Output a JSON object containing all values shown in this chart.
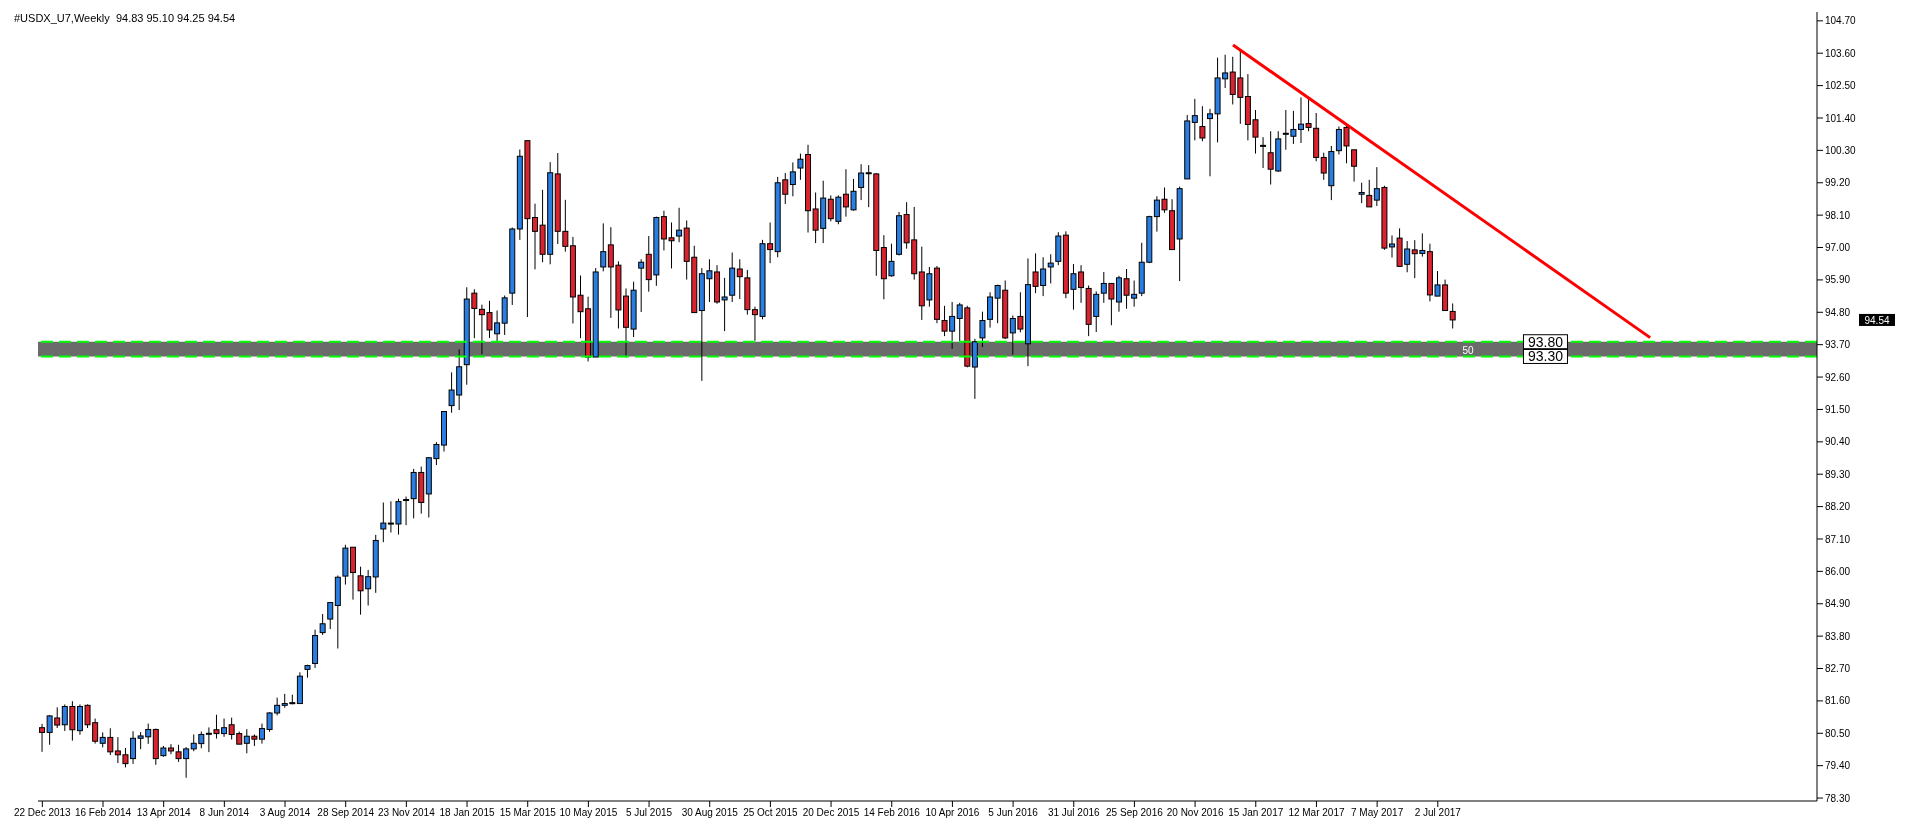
{
  "chart_data": {
    "type": "candlestick",
    "title": "#USDX_U7,Weekly  94.83 95.10 94.25 94.54",
    "xlim": [
      "2013-12-18",
      "2018-06-17"
    ],
    "ylim": [
      78.2,
      105.0
    ],
    "xticks": [
      {
        "value": "2013-12-22",
        "label": "22 Dec 2013"
      },
      {
        "value": "2014-02-16",
        "label": "16 Feb 2014"
      },
      {
        "value": "2014-04-13",
        "label": "13 Apr 2014"
      },
      {
        "value": "2014-06-08",
        "label": "8 Jun 2014"
      },
      {
        "value": "2014-08-03",
        "label": "3 Aug 2014"
      },
      {
        "value": "2014-09-28",
        "label": "28 Sep 2014"
      },
      {
        "value": "2014-11-23",
        "label": "23 Nov 2014"
      },
      {
        "value": "2015-01-18",
        "label": "18 Jan 2015"
      },
      {
        "value": "2015-03-15",
        "label": "15 Mar 2015"
      },
      {
        "value": "2015-05-10",
        "label": "10 May 2015"
      },
      {
        "value": "2015-07-05",
        "label": "5 Jul 2015"
      },
      {
        "value": "2015-08-30",
        "label": "30 Aug 2015"
      },
      {
        "value": "2015-10-25",
        "label": "25 Oct 2015"
      },
      {
        "value": "2015-12-20",
        "label": "20 Dec 2015"
      },
      {
        "value": "2016-02-14",
        "label": "14 Feb 2016"
      },
      {
        "value": "2016-04-10",
        "label": "10 Apr 2016"
      },
      {
        "value": "2016-06-05",
        "label": "5 Jun 2016"
      },
      {
        "value": "2016-07-31",
        "label": "31 Jul 2016"
      },
      {
        "value": "2016-09-25",
        "label": "25 Sep 2016"
      },
      {
        "value": "2016-11-20",
        "label": "20 Nov 2016"
      },
      {
        "value": "2017-01-15",
        "label": "15 Jan 2017"
      },
      {
        "value": "2017-03-12",
        "label": "12 Mar 2017"
      },
      {
        "value": "2017-05-07",
        "label": "7 May 2017"
      },
      {
        "value": "2017-07-02",
        "label": "2 Jul 2017"
      }
    ],
    "yticks": [
      {
        "value": 78.3,
        "label": "78.30"
      },
      {
        "value": 79.4,
        "label": "79.40"
      },
      {
        "value": 80.5,
        "label": "80.50"
      },
      {
        "value": 81.6,
        "label": "81.60"
      },
      {
        "value": 82.7,
        "label": "82.70"
      },
      {
        "value": 83.8,
        "label": "83.80"
      },
      {
        "value": 84.9,
        "label": "84.90"
      },
      {
        "value": 86.0,
        "label": "86.00"
      },
      {
        "value": 87.1,
        "label": "87.10"
      },
      {
        "value": 88.2,
        "label": "88.20"
      },
      {
        "value": 89.3,
        "label": "89.30"
      },
      {
        "value": 90.4,
        "label": "90.40"
      },
      {
        "value": 91.5,
        "label": "91.50"
      },
      {
        "value": 92.6,
        "label": "92.60"
      },
      {
        "value": 93.7,
        "label": "93.70"
      },
      {
        "value": 94.8,
        "label": "94.80"
      },
      {
        "value": 95.9,
        "label": "95.90"
      },
      {
        "value": 97.0,
        "label": "97.00"
      },
      {
        "value": 98.1,
        "label": "98.10"
      },
      {
        "value": 99.2,
        "label": "99.20"
      },
      {
        "value": 100.3,
        "label": "100.30"
      },
      {
        "value": 101.4,
        "label": "101.40"
      },
      {
        "value": 102.5,
        "label": "102.50"
      },
      {
        "value": 103.6,
        "label": "103.60"
      },
      {
        "value": 104.7,
        "label": "104.70"
      }
    ],
    "bands": [
      {
        "axis": "y",
        "from": 93.3,
        "to": 93.8,
        "color": "#6b6b6b"
      }
    ],
    "ref_lines": [
      {
        "axis": "y",
        "value": 93.8,
        "label": "93.80",
        "color": "#00ff00",
        "line_style": "dashed"
      },
      {
        "axis": "y",
        "value": 93.3,
        "label": "93.30",
        "color": "#00ff00",
        "line_style": "dashed"
      }
    ],
    "annotations": [
      {
        "text": "50",
        "x": "2017-07-30",
        "y": 93.3
      },
      "94.54"
    ],
    "series": [
      {
        "type": "candlestick",
        "x": [
          "2013-12-22",
          "2013-12-29",
          "2014-01-05",
          "2014-01-12",
          "2014-01-19",
          "2014-01-26",
          "2014-02-02",
          "2014-02-09",
          "2014-02-16",
          "2014-02-23",
          "2014-03-02",
          "2014-03-09",
          "2014-03-16",
          "2014-03-23",
          "2014-03-30",
          "2014-04-06",
          "2014-04-13",
          "2014-04-20",
          "2014-04-27",
          "2014-05-04",
          "2014-05-11",
          "2014-05-18",
          "2014-05-25",
          "2014-06-01",
          "2014-06-08",
          "2014-06-15",
          "2014-06-22",
          "2014-06-29",
          "2014-07-06",
          "2014-07-13",
          "2014-07-20",
          "2014-07-27",
          "2014-08-03",
          "2014-08-10",
          "2014-08-17",
          "2014-08-24",
          "2014-08-31",
          "2014-09-07",
          "2014-09-14",
          "2014-09-21",
          "2014-09-28",
          "2014-10-05",
          "2014-10-12",
          "2014-10-19",
          "2014-10-26",
          "2014-11-02",
          "2014-11-09",
          "2014-11-16",
          "2014-11-23",
          "2014-11-30",
          "2014-12-07",
          "2014-12-14",
          "2014-12-21",
          "2014-12-28",
          "2015-01-04",
          "2015-01-11",
          "2015-01-18",
          "2015-01-25",
          "2015-02-01",
          "2015-02-08",
          "2015-02-15",
          "2015-02-22",
          "2015-03-01",
          "2015-03-08",
          "2015-03-15",
          "2015-03-22",
          "2015-03-29",
          "2015-04-05",
          "2015-04-12",
          "2015-04-19",
          "2015-04-26",
          "2015-05-03",
          "2015-05-10",
          "2015-05-17",
          "2015-05-24",
          "2015-05-31",
          "2015-06-07",
          "2015-06-14",
          "2015-06-21",
          "2015-06-28",
          "2015-07-05",
          "2015-07-12",
          "2015-07-19",
          "2015-07-26",
          "2015-08-02",
          "2015-08-09",
          "2015-08-16",
          "2015-08-23",
          "2015-08-30",
          "2015-09-06",
          "2015-09-13",
          "2015-09-20",
          "2015-09-27",
          "2015-10-04",
          "2015-10-11",
          "2015-10-18",
          "2015-10-25",
          "2015-11-01",
          "2015-11-08",
          "2015-11-15",
          "2015-11-22",
          "2015-11-29",
          "2015-12-06",
          "2015-12-13",
          "2015-12-20",
          "2015-12-27",
          "2016-01-03",
          "2016-01-10",
          "2016-01-17",
          "2016-01-24",
          "2016-01-31",
          "2016-02-07",
          "2016-02-14",
          "2016-02-21",
          "2016-02-28",
          "2016-03-06",
          "2016-03-13",
          "2016-03-20",
          "2016-03-27",
          "2016-04-03",
          "2016-04-10",
          "2016-04-17",
          "2016-04-24",
          "2016-05-01",
          "2016-05-08",
          "2016-05-15",
          "2016-05-22",
          "2016-05-29",
          "2016-06-05",
          "2016-06-12",
          "2016-06-19",
          "2016-06-26",
          "2016-07-03",
          "2016-07-10",
          "2016-07-17",
          "2016-07-24",
          "2016-07-31",
          "2016-08-07",
          "2016-08-14",
          "2016-08-21",
          "2016-08-28",
          "2016-09-04",
          "2016-09-11",
          "2016-09-18",
          "2016-09-25",
          "2016-10-02",
          "2016-10-09",
          "2016-10-16",
          "2016-10-23",
          "2016-10-30",
          "2016-11-06",
          "2016-11-13",
          "2016-11-20",
          "2016-11-27",
          "2016-12-04",
          "2016-12-11",
          "2016-12-18",
          "2016-12-25",
          "2017-01-01",
          "2017-01-08",
          "2017-01-15",
          "2017-01-22",
          "2017-01-29",
          "2017-02-05",
          "2017-02-12",
          "2017-02-19",
          "2017-02-26",
          "2017-03-05",
          "2017-03-12",
          "2017-03-19",
          "2017-03-26",
          "2017-04-02",
          "2017-04-09",
          "2017-04-16",
          "2017-04-23",
          "2017-04-30",
          "2017-05-07",
          "2017-05-14",
          "2017-05-21",
          "2017-05-28",
          "2017-06-04",
          "2017-06-11",
          "2017-06-18",
          "2017-06-25",
          "2017-07-02",
          "2017-07-09",
          "2017-07-16"
        ],
        "ohlc": [
          [
            80.69,
            80.82,
            79.87,
            80.53
          ],
          [
            80.53,
            81.12,
            80.11,
            81.09
          ],
          [
            81.02,
            81.38,
            80.68,
            80.78
          ],
          [
            80.79,
            81.48,
            80.58,
            81.41
          ],
          [
            81.41,
            81.59,
            80.25,
            80.62
          ],
          [
            80.59,
            81.48,
            80.45,
            81.41
          ],
          [
            81.45,
            81.48,
            80.68,
            80.79
          ],
          [
            80.86,
            81.0,
            80.15,
            80.23
          ],
          [
            80.16,
            80.53,
            80.02,
            80.36
          ],
          [
            80.36,
            80.67,
            79.76,
            79.87
          ],
          [
            79.9,
            80.37,
            79.49,
            79.77
          ],
          [
            79.77,
            80.0,
            79.34,
            79.47
          ],
          [
            79.64,
            80.57,
            79.46,
            80.33
          ],
          [
            80.33,
            80.54,
            79.96,
            80.41
          ],
          [
            80.38,
            80.83,
            80.14,
            80.63
          ],
          [
            80.63,
            80.66,
            79.43,
            79.64
          ],
          [
            79.74,
            80.07,
            79.7,
            80.0
          ],
          [
            80.0,
            80.13,
            79.79,
            79.9
          ],
          [
            79.87,
            80.11,
            79.53,
            79.64
          ],
          [
            79.64,
            80.03,
            78.99,
            79.97
          ],
          [
            79.97,
            80.46,
            79.89,
            80.16
          ],
          [
            80.15,
            80.56,
            79.99,
            80.46
          ],
          [
            80.48,
            80.7,
            79.86,
            80.5
          ],
          [
            80.62,
            81.13,
            80.32,
            80.49
          ],
          [
            80.49,
            81.0,
            80.38,
            80.69
          ],
          [
            80.79,
            81.03,
            80.29,
            80.46
          ],
          [
            80.49,
            80.56,
            80.13,
            80.13
          ],
          [
            80.16,
            80.64,
            79.82,
            80.4
          ],
          [
            80.4,
            80.46,
            80.07,
            80.3
          ],
          [
            80.3,
            80.83,
            80.15,
            80.66
          ],
          [
            80.63,
            81.22,
            80.55,
            81.19
          ],
          [
            81.19,
            81.71,
            81.11,
            81.45
          ],
          [
            81.45,
            81.84,
            81.37,
            81.51
          ],
          [
            81.52,
            81.81,
            81.48,
            81.54
          ],
          [
            81.51,
            82.57,
            81.51,
            82.44
          ],
          [
            82.67,
            82.83,
            82.39,
            82.8
          ],
          [
            82.87,
            84.02,
            82.72,
            83.82
          ],
          [
            83.92,
            84.55,
            83.84,
            84.22
          ],
          [
            84.38,
            84.94,
            84.04,
            84.94
          ],
          [
            84.84,
            85.86,
            83.38,
            85.8
          ],
          [
            85.84,
            86.9,
            85.55,
            86.79
          ],
          [
            86.82,
            86.82,
            85.04,
            85.96
          ],
          [
            85.85,
            86.16,
            84.53,
            85.34
          ],
          [
            85.41,
            86.05,
            84.84,
            85.82
          ],
          [
            85.81,
            87.24,
            85.27,
            87.05
          ],
          [
            87.44,
            88.34,
            86.99,
            87.64
          ],
          [
            87.62,
            88.38,
            87.32,
            87.64
          ],
          [
            87.61,
            88.47,
            87.25,
            88.37
          ],
          [
            88.41,
            88.54,
            87.57,
            88.44
          ],
          [
            88.47,
            89.48,
            87.8,
            89.36
          ],
          [
            89.36,
            89.56,
            87.96,
            88.34
          ],
          [
            88.63,
            89.88,
            87.83,
            89.86
          ],
          [
            89.83,
            90.39,
            89.61,
            90.31
          ],
          [
            90.29,
            91.43,
            90.07,
            91.43
          ],
          [
            91.63,
            92.76,
            91.39,
            92.16
          ],
          [
            91.99,
            93.54,
            91.48,
            92.95
          ],
          [
            93.02,
            95.65,
            92.34,
            95.25
          ],
          [
            95.45,
            95.58,
            93.92,
            94.93
          ],
          [
            94.9,
            95.06,
            93.37,
            94.72
          ],
          [
            94.79,
            95.19,
            93.93,
            94.2
          ],
          [
            94.07,
            94.86,
            93.8,
            94.44
          ],
          [
            94.43,
            95.37,
            94.03,
            95.29
          ],
          [
            95.45,
            97.68,
            95.05,
            97.63
          ],
          [
            97.63,
            100.33,
            97.26,
            100.1
          ],
          [
            100.63,
            100.63,
            94.64,
            97.98
          ],
          [
            98.02,
            98.49,
            96.26,
            97.55
          ],
          [
            97.76,
            98.96,
            96.5,
            96.77
          ],
          [
            96.77,
            99.9,
            96.43,
            99.54
          ],
          [
            99.5,
            100.21,
            97.12,
            97.55
          ],
          [
            97.55,
            98.62,
            96.86,
            97.04
          ],
          [
            97.06,
            97.36,
            94.42,
            95.32
          ],
          [
            95.38,
            96.05,
            93.92,
            94.82
          ],
          [
            94.92,
            95.33,
            93.13,
            93.28
          ],
          [
            93.28,
            96.3,
            93.28,
            96.17
          ],
          [
            96.34,
            97.82,
            96.19,
            96.86
          ],
          [
            97.09,
            97.69,
            94.61,
            96.34
          ],
          [
            96.4,
            96.53,
            94.25,
            94.88
          ],
          [
            95.35,
            95.61,
            93.26,
            94.29
          ],
          [
            94.23,
            95.84,
            93.96,
            95.55
          ],
          [
            96.3,
            96.6,
            94.81,
            96.5
          ],
          [
            96.77,
            97.39,
            95.5,
            95.91
          ],
          [
            96.07,
            98.05,
            95.7,
            98.02
          ],
          [
            98.05,
            98.25,
            96.9,
            97.29
          ],
          [
            97.33,
            97.85,
            96.29,
            97.23
          ],
          [
            97.39,
            98.35,
            97.18,
            97.59
          ],
          [
            97.66,
            97.92,
            95.91,
            96.53
          ],
          [
            96.67,
            97.06,
            94.79,
            94.79
          ],
          [
            94.86,
            96.3,
            92.47,
            96.11
          ],
          [
            95.94,
            96.6,
            95.15,
            96.21
          ],
          [
            96.17,
            96.4,
            95.09,
            95.15
          ],
          [
            95.22,
            95.97,
            94.16,
            95.32
          ],
          [
            95.38,
            96.83,
            95.15,
            96.3
          ],
          [
            96.27,
            96.6,
            95.25,
            96.01
          ],
          [
            95.97,
            96.24,
            94.72,
            94.89
          ],
          [
            94.89,
            94.99,
            93.83,
            94.72
          ],
          [
            94.66,
            97.26,
            94.56,
            97.13
          ],
          [
            97.13,
            97.85,
            96.47,
            96.93
          ],
          [
            96.86,
            99.4,
            96.67,
            99.2
          ],
          [
            99.3,
            99.53,
            98.48,
            98.81
          ],
          [
            99.14,
            99.89,
            98.74,
            99.57
          ],
          [
            99.7,
            100.19,
            99.3,
            100.0
          ],
          [
            100.16,
            100.49,
            97.51,
            98.25
          ],
          [
            98.31,
            98.87,
            97.15,
            97.59
          ],
          [
            97.65,
            99.27,
            97.15,
            98.68
          ],
          [
            98.64,
            98.77,
            97.89,
            97.98
          ],
          [
            97.89,
            98.77,
            97.79,
            98.71
          ],
          [
            98.81,
            99.66,
            98.05,
            98.38
          ],
          [
            98.28,
            99.33,
            98.25,
            98.91
          ],
          [
            99.04,
            99.83,
            98.61,
            99.53
          ],
          [
            99.52,
            99.8,
            98.37,
            99.54
          ],
          [
            99.5,
            99.53,
            96.04,
            96.9
          ],
          [
            97.0,
            97.42,
            95.24,
            95.94
          ],
          [
            96.04,
            97.13,
            96.01,
            96.53
          ],
          [
            96.77,
            98.21,
            96.73,
            98.08
          ],
          [
            98.12,
            98.54,
            96.96,
            97.16
          ],
          [
            97.26,
            98.38,
            95.91,
            96.11
          ],
          [
            96.17,
            97.03,
            94.54,
            95.02
          ],
          [
            95.22,
            96.34,
            94.99,
            96.11
          ],
          [
            96.3,
            96.37,
            94.43,
            94.56
          ],
          [
            94.52,
            95.02,
            93.99,
            94.16
          ],
          [
            94.16,
            95.15,
            93.56,
            94.66
          ],
          [
            94.59,
            95.12,
            93.82,
            95.05
          ],
          [
            94.95,
            95.02,
            92.93,
            92.97
          ],
          [
            92.94,
            93.9,
            91.86,
            93.8
          ],
          [
            93.93,
            94.82,
            93.62,
            94.52
          ],
          [
            94.56,
            95.48,
            94.28,
            95.32
          ],
          [
            95.28,
            95.74,
            94.43,
            95.71
          ],
          [
            95.55,
            95.88,
            93.89,
            93.93
          ],
          [
            94.1,
            94.69,
            93.36,
            94.59
          ],
          [
            94.66,
            95.48,
            94.12,
            94.23
          ],
          [
            93.73,
            96.63,
            92.97,
            95.74
          ],
          [
            96.17,
            96.8,
            95.45,
            95.68
          ],
          [
            95.71,
            96.67,
            95.35,
            96.27
          ],
          [
            96.34,
            96.77,
            95.78,
            96.47
          ],
          [
            96.53,
            97.52,
            96.4,
            97.39
          ],
          [
            97.42,
            97.55,
            95.28,
            95.45
          ],
          [
            95.58,
            96.44,
            94.89,
            96.11
          ],
          [
            96.17,
            96.4,
            95.12,
            95.64
          ],
          [
            95.61,
            95.71,
            93.99,
            94.39
          ],
          [
            94.66,
            95.51,
            94.13,
            95.41
          ],
          [
            95.45,
            96.17,
            95.12,
            95.78
          ],
          [
            95.78,
            95.78,
            94.36,
            95.25
          ],
          [
            95.15,
            96.04,
            94.82,
            95.97
          ],
          [
            95.94,
            96.27,
            94.92,
            95.38
          ],
          [
            95.28,
            95.88,
            94.99,
            95.41
          ],
          [
            95.45,
            97.16,
            95.35,
            96.5
          ],
          [
            96.5,
            98.08,
            96.47,
            98.05
          ],
          [
            98.05,
            98.74,
            97.54,
            98.61
          ],
          [
            98.64,
            99.04,
            98.18,
            98.28
          ],
          [
            98.25,
            98.64,
            96.93,
            96.93
          ],
          [
            97.29,
            99.07,
            95.86,
            99.0
          ],
          [
            99.33,
            101.5,
            99.33,
            101.3
          ],
          [
            101.25,
            102.05,
            100.64,
            101.48
          ],
          [
            101.11,
            101.8,
            100.61,
            100.72
          ],
          [
            101.38,
            101.71,
            99.42,
            101.54
          ],
          [
            101.54,
            103.45,
            100.57,
            102.76
          ],
          [
            102.73,
            103.55,
            102.42,
            102.93
          ],
          [
            102.96,
            103.48,
            101.86,
            102.2
          ],
          [
            102.76,
            103.72,
            101.2,
            102.1
          ],
          [
            102.13,
            102.89,
            100.64,
            101.18
          ],
          [
            101.34,
            101.67,
            100.19,
            100.75
          ],
          [
            100.47,
            100.75,
            99.7,
            100.45
          ],
          [
            100.22,
            100.95,
            99.14,
            99.66
          ],
          [
            99.6,
            100.95,
            99.57,
            100.69
          ],
          [
            100.86,
            101.67,
            100.32,
            100.88
          ],
          [
            100.78,
            101.64,
            100.52,
            101.01
          ],
          [
            101.01,
            102.1,
            100.55,
            101.19
          ],
          [
            101.21,
            102.04,
            100.95,
            101.08
          ],
          [
            101.05,
            101.57,
            99.93,
            100.06
          ],
          [
            100.06,
            100.22,
            99.3,
            99.53
          ],
          [
            99.1,
            100.45,
            98.61,
            100.26
          ],
          [
            100.29,
            101.11,
            100.16,
            101.01
          ],
          [
            101.08,
            101.15,
            99.86,
            100.45
          ],
          [
            100.32,
            100.32,
            99.24,
            99.76
          ],
          [
            98.81,
            99.2,
            98.51,
            98.87
          ],
          [
            98.77,
            99.3,
            98.38,
            98.38
          ],
          [
            98.61,
            99.73,
            98.41,
            99.0
          ],
          [
            99.04,
            99.1,
            96.92,
            96.98
          ],
          [
            97.02,
            97.41,
            96.66,
            97.12
          ],
          [
            97.32,
            97.65,
            96.36,
            96.36
          ],
          [
            96.43,
            97.22,
            96.16,
            96.95
          ],
          [
            96.92,
            97.25,
            95.96,
            96.79
          ],
          [
            96.8,
            97.48,
            96.69,
            96.9
          ],
          [
            96.86,
            97.13,
            95.17,
            95.39
          ],
          [
            95.35,
            96.2,
            95.35,
            95.73
          ],
          [
            95.73,
            95.91,
            94.86,
            94.86
          ],
          [
            94.83,
            95.1,
            94.25,
            94.54
          ]
        ],
        "colors": [
          "#d9232e",
          "#2a7de1",
          "#d9232e",
          "#2a7de1",
          "#d9232e",
          "#2a7de1",
          "#d9232e",
          "#d9232e",
          "#2a7de1",
          "#d9232e",
          "#d9232e",
          "#d9232e",
          "#2a7de1",
          "#2a7de1",
          "#2a7de1",
          "#d9232e",
          "#2a7de1",
          "#d9232e",
          "#d9232e",
          "#2a7de1",
          "#2a7de1",
          "#2a7de1",
          "#2a7de1",
          "#d9232e",
          "#2a7de1",
          "#d9232e",
          "#d9232e",
          "#2a7de1",
          "#d9232e",
          "#2a7de1",
          "#2a7de1",
          "#2a7de1",
          "#2a7de1",
          "#2a7de1",
          "#2a7de1",
          "#2a7de1",
          "#2a7de1",
          "#2a7de1",
          "#2a7de1",
          "#2a7de1",
          "#2a7de1",
          "#d9232e",
          "#d9232e",
          "#2a7de1",
          "#2a7de1",
          "#2a7de1",
          "#2a7de1",
          "#2a7de1",
          "#2a7de1",
          "#2a7de1",
          "#d9232e",
          "#2a7de1",
          "#2a7de1",
          "#2a7de1",
          "#2a7de1",
          "#2a7de1",
          "#2a7de1",
          "#d9232e",
          "#d9232e",
          "#d9232e",
          "#2a7de1",
          "#2a7de1",
          "#2a7de1",
          "#2a7de1",
          "#d9232e",
          "#d9232e",
          "#d9232e",
          "#2a7de1",
          "#d9232e",
          "#d9232e",
          "#d9232e",
          "#d9232e",
          "#d9232e",
          "#2a7de1",
          "#2a7de1",
          "#d9232e",
          "#d9232e",
          "#d9232e",
          "#2a7de1",
          "#2a7de1",
          "#d9232e",
          "#2a7de1",
          "#d9232e",
          "#d9232e",
          "#2a7de1",
          "#d9232e",
          "#d9232e",
          "#2a7de1",
          "#2a7de1",
          "#d9232e",
          "#2a7de1",
          "#2a7de1",
          "#d9232e",
          "#d9232e",
          "#d9232e",
          "#2a7de1",
          "#d9232e",
          "#2a7de1",
          "#d9232e",
          "#2a7de1",
          "#2a7de1",
          "#d9232e",
          "#d9232e",
          "#2a7de1",
          "#d9232e",
          "#2a7de1",
          "#d9232e",
          "#2a7de1",
          "#2a7de1",
          "#2a7de1",
          "#d9232e",
          "#d9232e",
          "#2a7de1",
          "#2a7de1",
          "#d9232e",
          "#d9232e",
          "#d9232e",
          "#2a7de1",
          "#d9232e",
          "#d9232e",
          "#2a7de1",
          "#2a7de1",
          "#d9232e",
          "#2a7de1",
          "#2a7de1",
          "#2a7de1",
          "#2a7de1",
          "#d9232e",
          "#2a7de1",
          "#d9232e",
          "#2a7de1",
          "#d9232e",
          "#2a7de1",
          "#2a7de1",
          "#2a7de1",
          "#d9232e",
          "#2a7de1",
          "#d9232e",
          "#d9232e",
          "#2a7de1",
          "#2a7de1",
          "#d9232e",
          "#2a7de1",
          "#d9232e",
          "#2a7de1",
          "#2a7de1",
          "#2a7de1",
          "#2a7de1",
          "#d9232e",
          "#d9232e",
          "#2a7de1",
          "#2a7de1",
          "#2a7de1",
          "#d9232e",
          "#2a7de1",
          "#2a7de1",
          "#2a7de1",
          "#d9232e",
          "#d9232e",
          "#d9232e",
          "#d9232e",
          "#d9232e",
          "#d9232e",
          "#2a7de1",
          "#2a7de1",
          "#2a7de1",
          "#2a7de1",
          "#d9232e",
          "#d9232e",
          "#d9232e",
          "#2a7de1",
          "#2a7de1",
          "#d9232e",
          "#d9232e",
          "#2a7de1",
          "#d9232e",
          "#2a7de1",
          "#d9232e",
          "#2a7de1",
          "#d9232e",
          "#2a7de1",
          "#d9232e",
          "#2a7de1",
          "#d9232e",
          "#2a7de1",
          "#d9232e",
          "#d9232e"
        ]
      },
      {
        "type": "line",
        "color": "#ff0000",
        "x": [
          "2016-12-25",
          "2018-01-14"
        ],
        "values": [
          103.88,
          93.94
        ]
      }
    ]
  }
}
